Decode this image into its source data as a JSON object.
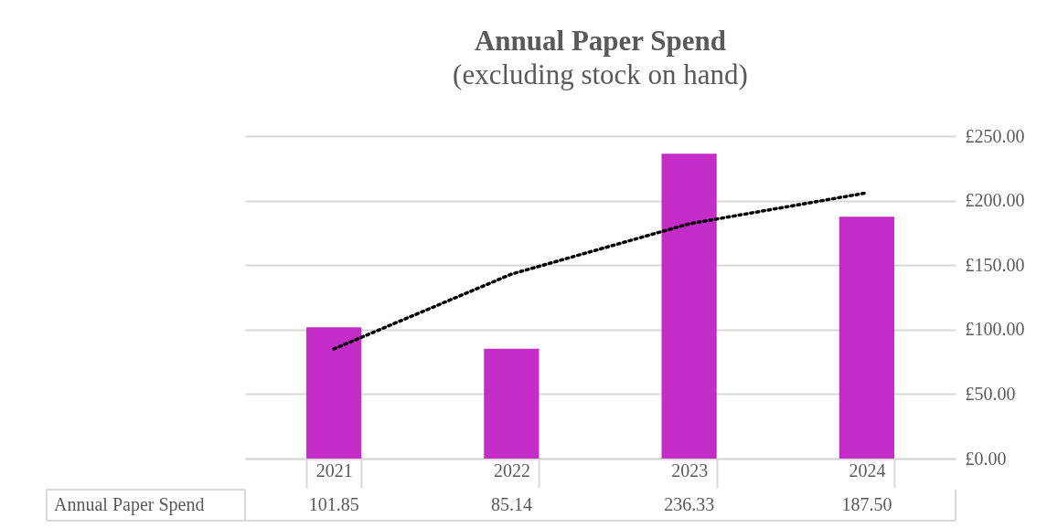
{
  "chart_data": {
    "type": "bar",
    "title": "Annual Paper Spend",
    "subtitle": "(excluding stock on hand)",
    "categories": [
      "2021",
      "2022",
      "2023",
      "2024"
    ],
    "series": [
      {
        "name": "Annual Paper Spend",
        "color": "#c42cc8",
        "values": [
          101.85,
          85.14,
          236.33,
          187.5
        ],
        "value_labels": [
          "101.85",
          "85.14",
          "236.33",
          "187.50"
        ]
      },
      {
        "type": "line",
        "color": "#000000",
        "line_style": "dotted",
        "values": [
          85,
          143,
          182,
          206
        ]
      }
    ],
    "ylim": [
      0,
      250
    ],
    "yticks": [
      {
        "value": 0,
        "label": "£0.00"
      },
      {
        "value": 50,
        "label": "£50.00"
      },
      {
        "value": 100,
        "label": "£100.00"
      },
      {
        "value": 150,
        "label": "£150.00"
      },
      {
        "value": 200,
        "label": "£200.00"
      },
      {
        "value": 250,
        "label": "£250.00"
      }
    ],
    "grid": "y"
  }
}
